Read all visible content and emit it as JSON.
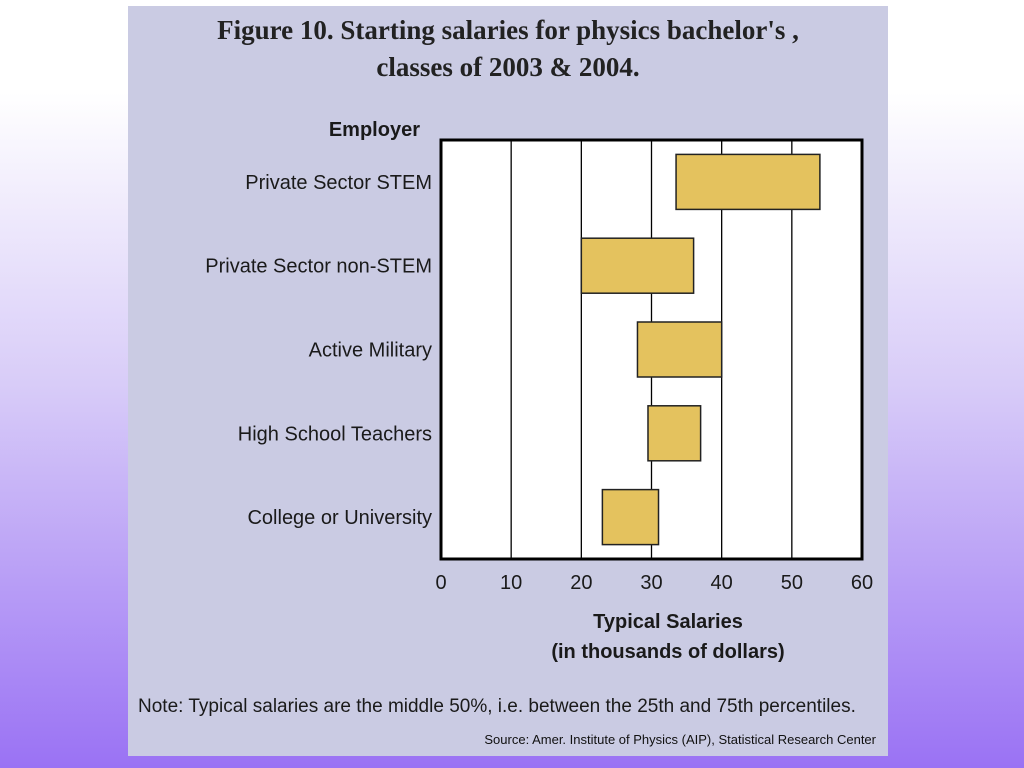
{
  "title_line1": "Figure 10.  Starting salaries for physics bachelor's ,",
  "title_line2": "classes of 2003 & 2004.",
  "note": "Note: Typical salaries are the middle 50%, i.e. between the 25th and 75th percentiles.",
  "source": "Source: Amer. Institute of Physics (AIP), Statistical Research Center",
  "colors": {
    "bar_fill": "#e4c25e",
    "bar_stroke": "#222222",
    "plot_bg": "#ffffff",
    "panel_bg": "#cacbe3"
  },
  "chart_data": {
    "type": "bar",
    "orientation": "horizontal-range",
    "ylabel": "Employer",
    "xlabel_line1": "Typical Salaries",
    "xlabel_line2": "(in thousands of dollars)",
    "xlim": [
      0,
      60
    ],
    "xticks": [
      0,
      10,
      20,
      30,
      40,
      50,
      60
    ],
    "grid": "vertical",
    "categories": [
      "Private Sector STEM",
      "Private Sector non-STEM",
      "Active Military",
      "High School Teachers",
      "College or University"
    ],
    "ranges": [
      {
        "low": 33.5,
        "high": 54
      },
      {
        "low": 20,
        "high": 36
      },
      {
        "low": 28,
        "high": 40
      },
      {
        "low": 29.5,
        "high": 37
      },
      {
        "low": 23,
        "high": 31
      }
    ]
  }
}
